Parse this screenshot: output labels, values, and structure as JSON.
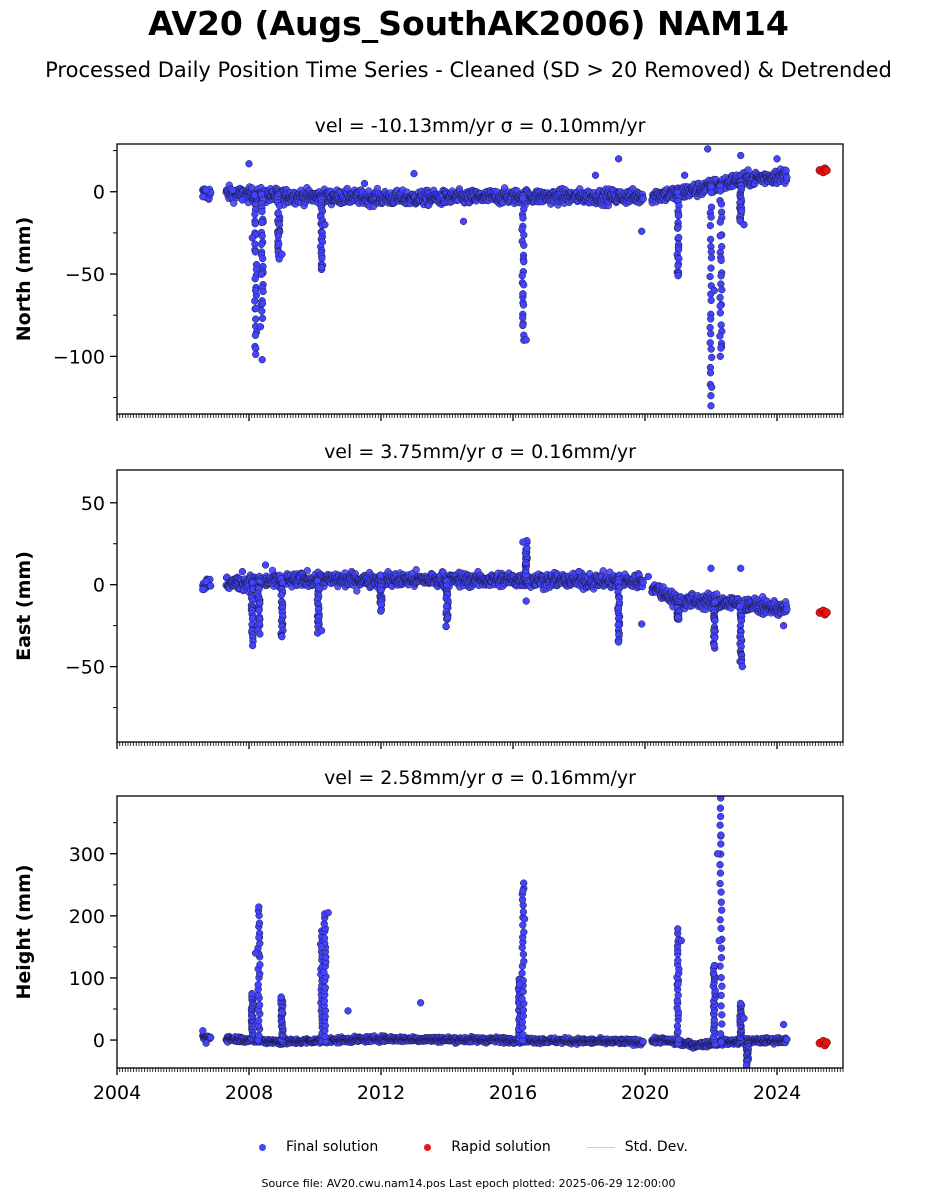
{
  "header": {
    "title": "AV20 (Augs_SouthAK2006) NAM14",
    "subtitle": "Processed Daily Position Time Series - Cleaned (SD > 20 Removed) & Detrended"
  },
  "colors": {
    "final": "#4444ff",
    "final_edge": "#1a1a40",
    "rapid": "#ee1111",
    "std": "#cccccc"
  },
  "legend": {
    "final_label": "Final solution",
    "rapid_label": "Rapid solution",
    "std_label": "Std. Dev."
  },
  "footer": "Source file: AV20.cwu.nam14.pos  Last epoch plotted: 2025-06-29 12:00:00",
  "chart_data": [
    {
      "type": "scatter",
      "component": "north",
      "title": "vel = -10.13mm/yr   σ = 0.10mm/yr",
      "ylabel": "North (mm)",
      "xlim": [
        2004.0,
        2026.0
      ],
      "ylim": [
        -135,
        29
      ],
      "yticks": [
        0,
        -50,
        -100
      ],
      "ytick_labels": [
        "0",
        "−50",
        "−100"
      ],
      "xticks": [
        2004,
        2008,
        2012,
        2016,
        2020,
        2024
      ],
      "xtick_labels": [],
      "baseline": [
        [
          2006.6,
          -1
        ],
        [
          2007.4,
          -1
        ],
        [
          2008.0,
          -2
        ],
        [
          2010.0,
          -3
        ],
        [
          2013.0,
          -4
        ],
        [
          2016.0,
          -3
        ],
        [
          2019.9,
          -3
        ],
        [
          2020.4,
          -2
        ],
        [
          2021.0,
          -1
        ],
        [
          2022.0,
          3
        ],
        [
          2022.8,
          7
        ],
        [
          2024.3,
          10
        ]
      ],
      "spikes": [
        [
          2008.2,
          -100
        ],
        [
          2008.4,
          -75
        ],
        [
          2008.9,
          -40
        ],
        [
          2010.2,
          -48
        ],
        [
          2016.3,
          -90
        ],
        [
          2021.0,
          -52
        ],
        [
          2022.0,
          -125
        ],
        [
          2022.3,
          -100
        ],
        [
          2022.9,
          -18
        ]
      ],
      "final": [
        [
          2006.6,
          -3
        ],
        [
          2006.7,
          1
        ],
        [
          2007.5,
          1
        ],
        [
          2007.8,
          -5
        ],
        [
          2008.0,
          17
        ],
        [
          2008.1,
          -28
        ],
        [
          2008.2,
          -60
        ],
        [
          2008.35,
          -82
        ],
        [
          2008.4,
          -102
        ],
        [
          2008.9,
          -32
        ],
        [
          2009.0,
          -38
        ],
        [
          2010.2,
          -46
        ],
        [
          2010.3,
          -20
        ],
        [
          2011.5,
          5
        ],
        [
          2013.0,
          11
        ],
        [
          2014.5,
          -18
        ],
        [
          2016.3,
          -62
        ],
        [
          2016.4,
          -90
        ],
        [
          2018.5,
          10
        ],
        [
          2019.2,
          20
        ],
        [
          2019.9,
          -24
        ],
        [
          2021.0,
          -45
        ],
        [
          2021.2,
          10
        ],
        [
          2021.9,
          26
        ],
        [
          2022.0,
          -130
        ],
        [
          2022.1,
          -60
        ],
        [
          2022.3,
          -95
        ],
        [
          2022.9,
          22
        ],
        [
          2023.0,
          -20
        ],
        [
          2024.0,
          20
        ]
      ],
      "rapid": [
        [
          2025.3,
          13
        ],
        [
          2025.4,
          12
        ],
        [
          2025.45,
          14
        ],
        [
          2025.5,
          13
        ]
      ]
    },
    {
      "type": "scatter",
      "component": "east",
      "title": "vel = 3.75mm/yr   σ = 0.16mm/yr",
      "ylabel": "East (mm)",
      "xlim": [
        2004.0,
        2026.0
      ],
      "ylim": [
        -96,
        70
      ],
      "yticks": [
        50,
        0,
        -50
      ],
      "ytick_labels": [
        "50",
        "0",
        "−50"
      ],
      "xticks": [
        2004,
        2008,
        2012,
        2016,
        2020,
        2024
      ],
      "xtick_labels": [],
      "baseline": [
        [
          2006.6,
          0
        ],
        [
          2007.5,
          1
        ],
        [
          2008.5,
          2
        ],
        [
          2010.0,
          3
        ],
        [
          2013.0,
          3
        ],
        [
          2016.0,
          3
        ],
        [
          2019.9,
          2
        ],
        [
          2020.3,
          -2
        ],
        [
          2021.0,
          -10
        ],
        [
          2022.0,
          -10
        ],
        [
          2023.0,
          -12
        ],
        [
          2024.3,
          -15
        ]
      ],
      "spikes": [
        [
          2008.1,
          -36
        ],
        [
          2008.3,
          -28
        ],
        [
          2009.0,
          -33
        ],
        [
          2010.1,
          -28
        ],
        [
          2012.0,
          -15
        ],
        [
          2014.0,
          -25
        ],
        [
          2016.4,
          26
        ],
        [
          2019.2,
          -35
        ],
        [
          2021.0,
          -20
        ],
        [
          2022.1,
          -38
        ],
        [
          2022.9,
          -48
        ]
      ],
      "final": [
        [
          2006.6,
          -3
        ],
        [
          2006.7,
          2
        ],
        [
          2007.8,
          8
        ],
        [
          2008.5,
          12
        ],
        [
          2010.2,
          -28
        ],
        [
          2012.0,
          -16
        ],
        [
          2016.3,
          26
        ],
        [
          2016.4,
          -10
        ],
        [
          2018.0,
          8
        ],
        [
          2019.2,
          -35
        ],
        [
          2019.9,
          -24
        ],
        [
          2020.1,
          5
        ],
        [
          2021.0,
          -20
        ],
        [
          2022.0,
          10
        ],
        [
          2022.9,
          10
        ],
        [
          2022.95,
          -50
        ],
        [
          2024.2,
          -25
        ]
      ],
      "rapid": [
        [
          2025.3,
          -17
        ],
        [
          2025.4,
          -16
        ],
        [
          2025.45,
          -18
        ],
        [
          2025.5,
          -17
        ]
      ]
    },
    {
      "type": "scatter",
      "component": "height",
      "title": "vel = 2.58mm/yr   σ = 0.16mm/yr",
      "ylabel": "Height (mm)",
      "xlim": [
        2004.0,
        2026.0
      ],
      "ylim": [
        -45,
        393
      ],
      "yticks": [
        300,
        200,
        100,
        0
      ],
      "ytick_labels": [
        "300",
        "200",
        "100",
        "0"
      ],
      "xticks": [
        2004,
        2008,
        2012,
        2016,
        2020,
        2024
      ],
      "xtick_labels": [
        "2004",
        "2008",
        "2012",
        "2016",
        "2020",
        "2024"
      ],
      "baseline": [
        [
          2006.6,
          5
        ],
        [
          2007.5,
          2
        ],
        [
          2009.0,
          -3
        ],
        [
          2012.0,
          2
        ],
        [
          2016.0,
          0
        ],
        [
          2019.9,
          -3
        ],
        [
          2020.5,
          0
        ],
        [
          2021.5,
          -8
        ],
        [
          2022.5,
          -3
        ],
        [
          2024.3,
          0
        ]
      ],
      "spikes": [
        [
          2008.1,
          75
        ],
        [
          2008.3,
          215
        ],
        [
          2009.0,
          70
        ],
        [
          2010.2,
          175
        ],
        [
          2010.3,
          205
        ],
        [
          2016.2,
          100
        ],
        [
          2016.3,
          255
        ],
        [
          2021.0,
          178
        ],
        [
          2022.3,
          390
        ],
        [
          2022.1,
          120
        ],
        [
          2022.9,
          58
        ],
        [
          2023.1,
          -40
        ]
      ],
      "final": [
        [
          2006.6,
          15
        ],
        [
          2006.7,
          -5
        ],
        [
          2008.2,
          140
        ],
        [
          2008.3,
          165
        ],
        [
          2009.0,
          45
        ],
        [
          2010.2,
          150
        ],
        [
          2010.4,
          205
        ],
        [
          2011.0,
          47
        ],
        [
          2013.2,
          60
        ],
        [
          2016.2,
          90
        ],
        [
          2016.3,
          240
        ],
        [
          2016.35,
          195
        ],
        [
          2021.0,
          90
        ],
        [
          2021.1,
          160
        ],
        [
          2022.2,
          300
        ],
        [
          2022.3,
          330
        ],
        [
          2022.25,
          160
        ],
        [
          2022.1,
          120
        ],
        [
          2023.0,
          35
        ],
        [
          2024.2,
          25
        ]
      ],
      "rapid": [
        [
          2025.3,
          -5
        ],
        [
          2025.4,
          -2
        ],
        [
          2025.45,
          -8
        ],
        [
          2025.5,
          -4
        ]
      ]
    }
  ]
}
